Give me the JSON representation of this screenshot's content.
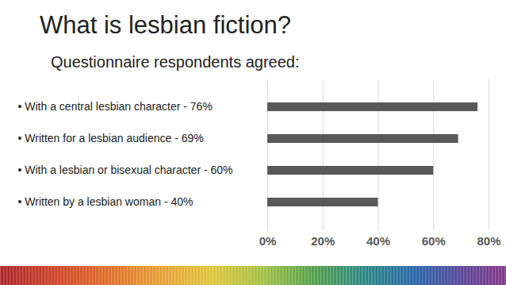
{
  "chart_data": {
    "type": "bar",
    "title": "What is lesbian fiction?",
    "subtitle": "Questionnaire respondents agreed:",
    "orientation": "horizontal",
    "categories": [
      "• With a central lesbian character - 76%",
      "• Written for a lesbian audience - 69%",
      "• With a lesbian or bisexual character - 60%",
      "• Written by a lesbian woman - 40%"
    ],
    "values": [
      76,
      69,
      60,
      40
    ],
    "color": "#595959",
    "xlim": [
      0,
      80
    ],
    "xticks": [
      {
        "value": 0,
        "label": "0%"
      },
      {
        "value": 20,
        "label": "20%"
      },
      {
        "value": 40,
        "label": "40%"
      },
      {
        "value": 60,
        "label": "60%"
      },
      {
        "value": 80,
        "label": "80%"
      }
    ],
    "grid": true
  }
}
